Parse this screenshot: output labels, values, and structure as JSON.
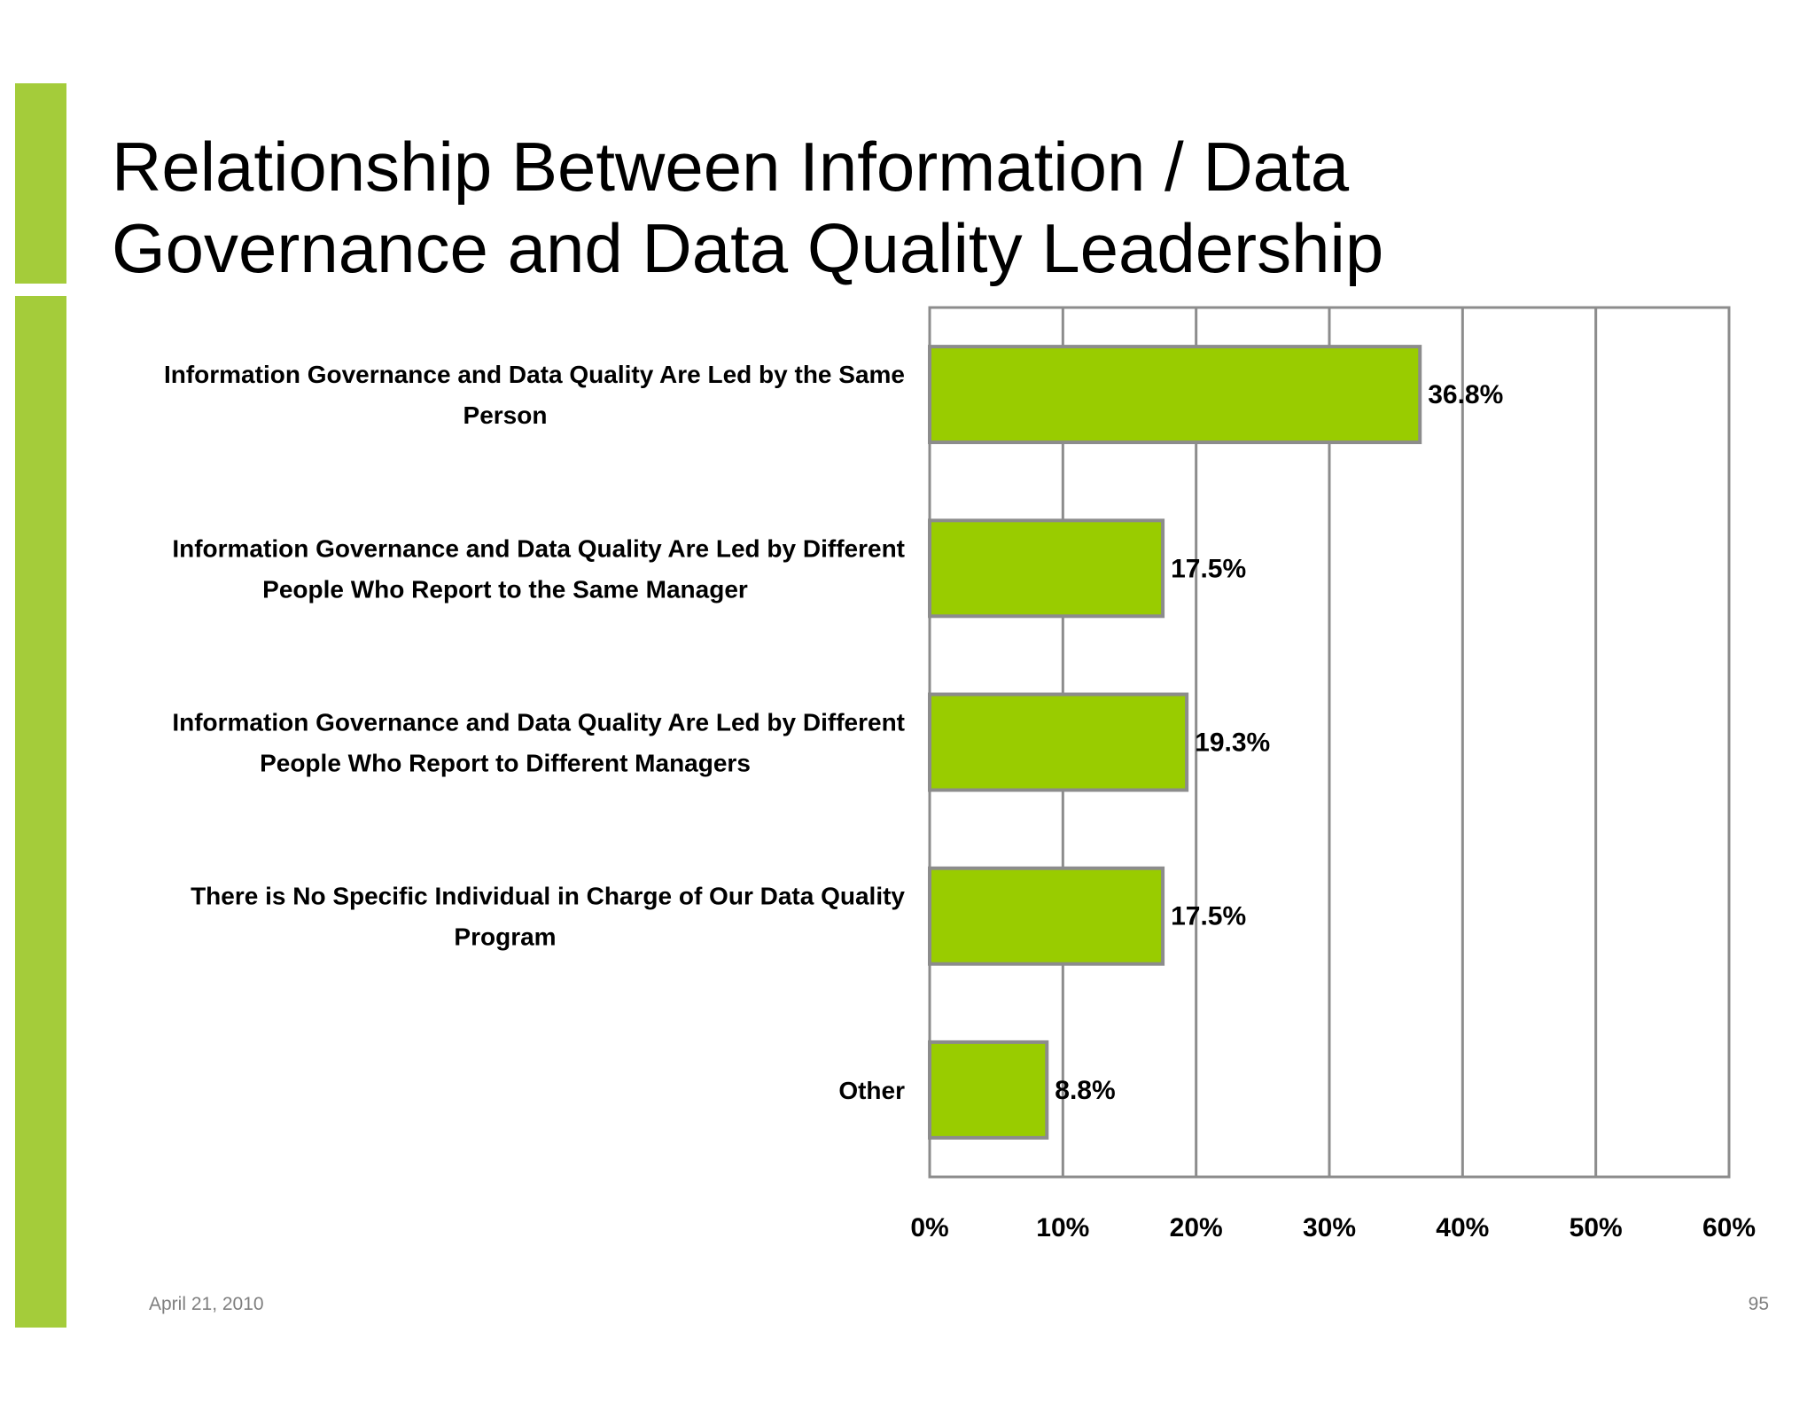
{
  "slide": {
    "title_line1": "Relationship Between Information / Data",
    "title_line2": "Governance and Data Quality Leadership",
    "footer_date": "April 21, 2010",
    "page_number": "95"
  },
  "colors": {
    "accent": "#a4cc3a",
    "bar_fill": "#99cc00",
    "bar_stroke": "#8c8c8c",
    "grid": "#8c8c8c"
  },
  "chart_data": {
    "type": "bar",
    "orientation": "horizontal",
    "categories": [
      [
        "Information Governance and Data Quality Are Led by the Same",
        "Person"
      ],
      [
        "Information Governance and Data Quality Are Led by Different",
        "People Who Report to the Same Manager"
      ],
      [
        "Information Governance and Data Quality Are Led by Different",
        "People Who Report to Different Managers"
      ],
      [
        "There is No Specific Individual in Charge of Our Data Quality",
        "Program"
      ],
      [
        "Other"
      ]
    ],
    "values": [
      36.8,
      17.5,
      19.3,
      17.5,
      8.8
    ],
    "data_labels": [
      "36.8%",
      "17.5%",
      "19.3%",
      "17.5%",
      "8.8%"
    ],
    "x_ticks": [
      "0%",
      "10%",
      "20%",
      "30%",
      "40%",
      "50%",
      "60%"
    ],
    "xlim": [
      0,
      60
    ],
    "grid": true,
    "title": "",
    "xlabel": "",
    "ylabel": ""
  }
}
